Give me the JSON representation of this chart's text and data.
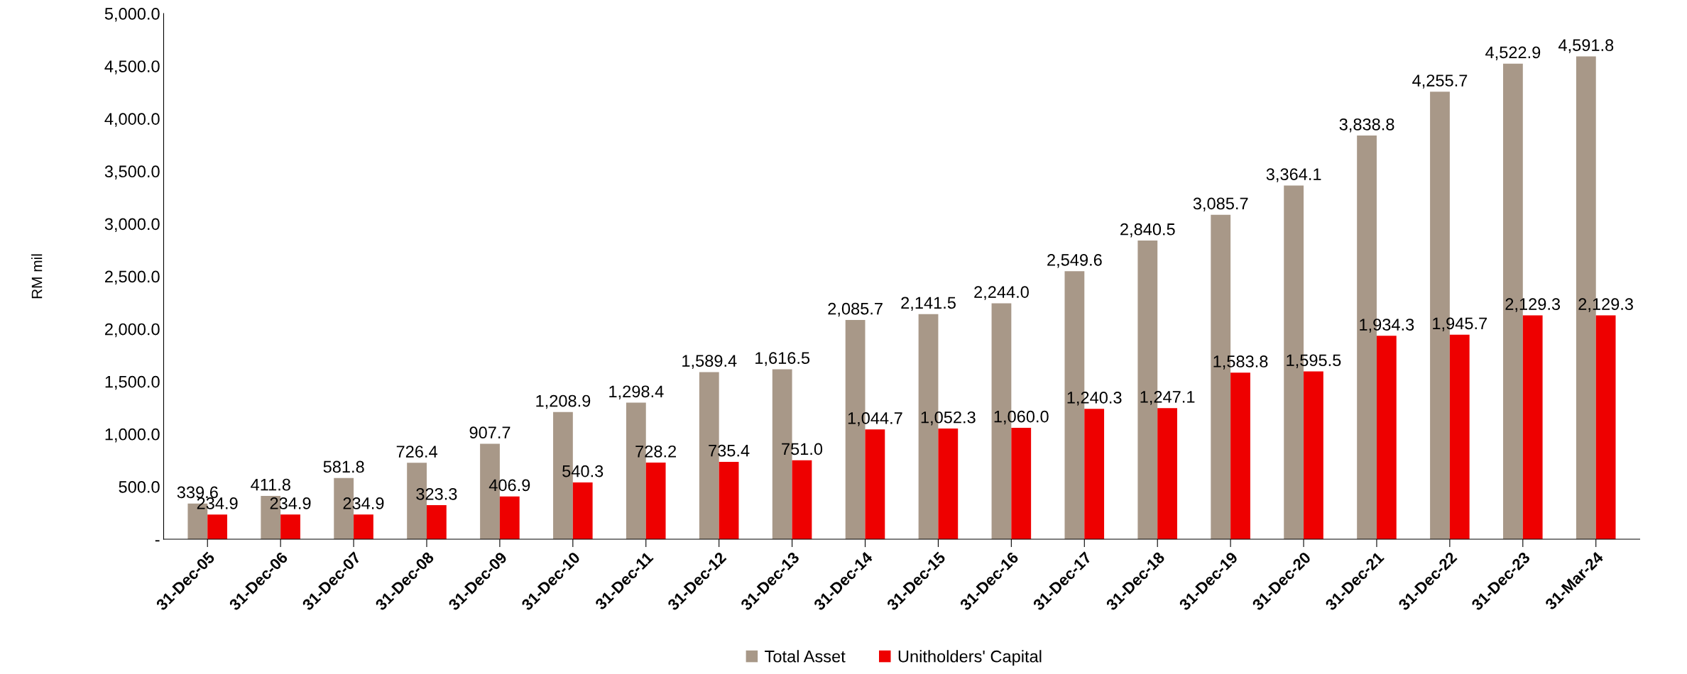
{
  "chart_data": {
    "type": "bar",
    "ylabel": "RM mil",
    "categories": [
      "31-Dec-05",
      "31-Dec-06",
      "31-Dec-07",
      "31-Dec-08",
      "31-Dec-09",
      "31-Dec-10",
      "31-Dec-11",
      "31-Dec-12",
      "31-Dec-13",
      "31-Dec-14",
      "31-Dec-15",
      "31-Dec-16",
      "31-Dec-17",
      "31-Dec-18",
      "31-Dec-19",
      "31-Dec-20",
      "31-Dec-21",
      "31-Dec-22",
      "31-Dec-23",
      "31-Mar-24"
    ],
    "series": [
      {
        "name": "Total Asset",
        "color": "#a89888",
        "values": [
          339.6,
          411.8,
          581.8,
          726.4,
          907.7,
          1208.9,
          1298.4,
          1589.4,
          1616.5,
          2085.7,
          2141.5,
          2244.0,
          2549.6,
          2840.5,
          3085.7,
          3364.1,
          3838.8,
          4255.7,
          4522.9,
          4591.8
        ],
        "value_labels": [
          "339.6",
          "411.8",
          "581.8",
          "726.4",
          "907.7",
          "1,208.9",
          "1,298.4",
          "1,589.4",
          "1,616.5",
          "2,085.7",
          "2,141.5",
          "2,244.0",
          "2,549.6",
          "2,840.5",
          "3,085.7",
          "3,364.1",
          "3,838.8",
          "4,255.7",
          "4,522.9",
          "4,591.8"
        ]
      },
      {
        "name": "Unitholders' Capital",
        "color": "#ee0000",
        "values": [
          234.9,
          234.9,
          234.9,
          323.3,
          406.9,
          540.3,
          728.2,
          735.4,
          751.0,
          1044.7,
          1052.3,
          1060.0,
          1240.3,
          1247.1,
          1583.8,
          1595.5,
          1934.3,
          1945.7,
          2129.3,
          2129.3
        ],
        "value_labels": [
          "234.9",
          "234.9",
          "234.9",
          "323.3",
          "406.9",
          "540.3",
          "728.2",
          "735.4",
          "751.0",
          "1,044.7",
          "1,052.3",
          "1,060.0",
          "1,240.3",
          "1,247.1",
          "1,583.8",
          "1,595.5",
          "1,934.3",
          "1,945.7",
          "2,129.3",
          "2,129.3"
        ]
      }
    ],
    "ylim": [
      0,
      5000
    ],
    "yticks": [
      {
        "value": 0,
        "label": "-"
      },
      {
        "value": 500,
        "label": "500.0"
      },
      {
        "value": 1000,
        "label": "1,000.0"
      },
      {
        "value": 1500,
        "label": "1,500.0"
      },
      {
        "value": 2000,
        "label": "2,000.0"
      },
      {
        "value": 2500,
        "label": "2,500.0"
      },
      {
        "value": 3000,
        "label": "3,000.0"
      },
      {
        "value": 3500,
        "label": "3,500.0"
      },
      {
        "value": 4000,
        "label": "4,000.0"
      },
      {
        "value": 4500,
        "label": "4,500.0"
      },
      {
        "value": 5000,
        "label": "5,000.0"
      }
    ],
    "grid": false,
    "legend": "bottom"
  }
}
